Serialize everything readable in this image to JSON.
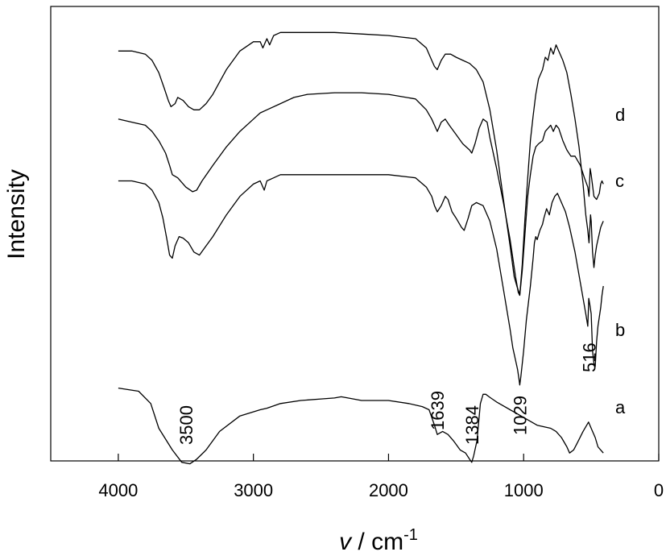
{
  "chart_data": {
    "type": "line",
    "xlabel": "v / cm-1",
    "xlabel_main": "v",
    "xlabel_sep": " / cm",
    "xlabel_sup": "-1",
    "ylabel": "Intensity",
    "xlim": [
      4500,
      0
    ],
    "x_reversed": true,
    "y_ticks_shown": false,
    "grid": false,
    "xticks": [
      "4000",
      "3000",
      "2000",
      "1000",
      "0"
    ],
    "xtick_values": [
      4000,
      3000,
      2000,
      1000,
      0
    ],
    "annotations": [
      {
        "text": "3500",
        "x": 3500
      },
      {
        "text": "1639",
        "x": 1639
      },
      {
        "text": "1384",
        "x": 1384
      },
      {
        "text": "1029",
        "x": 1029
      },
      {
        "text": "516",
        "x": 516
      }
    ],
    "series": [
      {
        "name": "a",
        "x": [
          4000,
          3850,
          3760,
          3700,
          3600,
          3530,
          3470,
          3420,
          3350,
          3250,
          3100,
          2950,
          2900,
          2800,
          2650,
          2500,
          2400,
          2350,
          2300,
          2200,
          2000,
          1850,
          1750,
          1700,
          1660,
          1639,
          1600,
          1560,
          1520,
          1470,
          1430,
          1400,
          1384,
          1370,
          1345,
          1320,
          1300,
          1280,
          1250,
          1200,
          1100,
          1000,
          900,
          850,
          800,
          760,
          720,
          680,
          660,
          630,
          600,
          560,
          520,
          500,
          470,
          450,
          430,
          410
        ],
        "y": [
          0.1,
          0.09,
          0.05,
          -0.03,
          -0.1,
          -0.14,
          -0.145,
          -0.13,
          -0.1,
          -0.04,
          0.01,
          0.03,
          0.035,
          0.05,
          0.06,
          0.065,
          0.068,
          0.072,
          0.068,
          0.06,
          0.06,
          0.05,
          0.04,
          0.03,
          -0.02,
          -0.05,
          -0.04,
          -0.05,
          -0.07,
          -0.1,
          -0.11,
          -0.13,
          -0.14,
          -0.12,
          -0.07,
          0.05,
          0.08,
          0.08,
          0.07,
          0.055,
          0.03,
          0.005,
          -0.02,
          -0.025,
          -0.03,
          -0.04,
          -0.06,
          -0.09,
          -0.11,
          -0.1,
          -0.075,
          -0.04,
          -0.01,
          -0.03,
          -0.06,
          -0.09,
          -0.1,
          -0.11
        ]
      },
      {
        "name": "b",
        "x": [
          4000,
          3900,
          3800,
          3750,
          3700,
          3670,
          3640,
          3620,
          3600,
          3580,
          3550,
          3520,
          3480,
          3440,
          3400,
          3300,
          3200,
          3100,
          3000,
          2950,
          2920,
          2900,
          2850,
          2800,
          2600,
          2400,
          2200,
          2000,
          1800,
          1720,
          1680,
          1660,
          1639,
          1610,
          1580,
          1560,
          1530,
          1500,
          1460,
          1440,
          1410,
          1384,
          1350,
          1300,
          1250,
          1200,
          1150,
          1100,
          1080,
          1060,
          1045,
          1035,
          1029,
          1020,
          1000,
          980,
          950,
          930,
          920,
          910,
          900,
          880,
          860,
          850,
          830,
          810,
          790,
          770,
          750,
          720,
          690,
          660,
          620,
          580,
          540,
          525,
          518,
          510,
          500,
          490,
          480,
          470,
          460,
          450,
          440,
          430,
          420,
          410
        ],
        "y": [
          0.77,
          0.77,
          0.76,
          0.74,
          0.7,
          0.65,
          0.58,
          0.53,
          0.52,
          0.56,
          0.59,
          0.585,
          0.57,
          0.54,
          0.53,
          0.59,
          0.66,
          0.72,
          0.76,
          0.77,
          0.74,
          0.77,
          0.78,
          0.79,
          0.79,
          0.79,
          0.79,
          0.79,
          0.78,
          0.75,
          0.72,
          0.69,
          0.67,
          0.69,
          0.72,
          0.71,
          0.67,
          0.65,
          0.62,
          0.61,
          0.65,
          0.69,
          0.7,
          0.69,
          0.64,
          0.55,
          0.42,
          0.29,
          0.23,
          0.19,
          0.16,
          0.13,
          0.11,
          0.14,
          0.22,
          0.32,
          0.43,
          0.52,
          0.57,
          0.59,
          0.58,
          0.61,
          0.63,
          0.65,
          0.68,
          0.66,
          0.7,
          0.72,
          0.73,
          0.7,
          0.67,
          0.62,
          0.54,
          0.44,
          0.34,
          0.3,
          0.39,
          0.37,
          0.34,
          0.22,
          0.18,
          0.17,
          0.25,
          0.3,
          0.33,
          0.36,
          0.4,
          0.43
        ]
      },
      {
        "name": "c",
        "x": [
          4000,
          3900,
          3800,
          3750,
          3700,
          3650,
          3620,
          3600,
          3560,
          3500,
          3450,
          3420,
          3380,
          3300,
          3200,
          3100,
          3000,
          2950,
          2900,
          2800,
          2700,
          2600,
          2400,
          2200,
          2000,
          1800,
          1720,
          1680,
          1660,
          1639,
          1610,
          1580,
          1550,
          1500,
          1450,
          1400,
          1384,
          1360,
          1330,
          1300,
          1270,
          1250,
          1200,
          1150,
          1100,
          1060,
          1040,
          1029,
          1010,
          990,
          970,
          950,
          930,
          910,
          890,
          860,
          840,
          820,
          800,
          780,
          760,
          740,
          710,
          680,
          650,
          620,
          580,
          550,
          525,
          516,
          508,
          500,
          480,
          460,
          440,
          430,
          420,
          410
        ],
        "y": [
          0.97,
          0.96,
          0.95,
          0.93,
          0.9,
          0.86,
          0.82,
          0.79,
          0.78,
          0.75,
          0.735,
          0.74,
          0.77,
          0.82,
          0.88,
          0.93,
          0.97,
          0.99,
          1.0,
          1.02,
          1.04,
          1.05,
          1.055,
          1.055,
          1.05,
          1.035,
          1.0,
          0.97,
          0.95,
          0.93,
          0.96,
          0.97,
          0.95,
          0.92,
          0.89,
          0.87,
          0.86,
          0.89,
          0.94,
          0.97,
          0.96,
          0.91,
          0.81,
          0.7,
          0.58,
          0.46,
          0.41,
          0.4,
          0.48,
          0.6,
          0.72,
          0.79,
          0.85,
          0.88,
          0.89,
          0.9,
          0.93,
          0.94,
          0.95,
          0.93,
          0.95,
          0.94,
          0.9,
          0.87,
          0.85,
          0.85,
          0.82,
          0.78,
          0.75,
          0.72,
          0.81,
          0.79,
          0.72,
          0.71,
          0.73,
          0.76,
          0.77,
          0.76
        ]
      },
      {
        "name": "d",
        "x": [
          4000,
          3900,
          3800,
          3750,
          3700,
          3660,
          3630,
          3610,
          3580,
          3560,
          3520,
          3480,
          3440,
          3400,
          3350,
          3300,
          3250,
          3200,
          3100,
          3000,
          2950,
          2930,
          2900,
          2880,
          2850,
          2800,
          2600,
          2400,
          2200,
          2000,
          1900,
          1800,
          1720,
          1680,
          1660,
          1639,
          1610,
          1580,
          1540,
          1500,
          1450,
          1400,
          1350,
          1300,
          1250,
          1200,
          1150,
          1100,
          1070,
          1050,
          1035,
          1029,
          1010,
          990,
          970,
          950,
          930,
          910,
          890,
          860,
          840,
          820,
          800,
          780,
          760,
          740,
          710,
          680,
          650,
          620,
          590,
          560,
          540,
          525,
          516,
          505,
          500,
          490,
          480,
          470,
          460,
          450,
          440,
          430,
          420,
          410
        ],
        "y": [
          1.19,
          1.19,
          1.18,
          1.16,
          1.12,
          1.07,
          1.03,
          1.01,
          1.02,
          1.04,
          1.03,
          1.01,
          1.0,
          1.0,
          1.02,
          1.05,
          1.09,
          1.13,
          1.19,
          1.22,
          1.22,
          1.2,
          1.23,
          1.21,
          1.24,
          1.25,
          1.25,
          1.25,
          1.245,
          1.24,
          1.235,
          1.23,
          1.2,
          1.16,
          1.14,
          1.13,
          1.16,
          1.18,
          1.18,
          1.17,
          1.16,
          1.15,
          1.13,
          1.09,
          1.0,
          0.87,
          0.71,
          0.56,
          0.46,
          0.43,
          0.41,
          0.4,
          0.5,
          0.65,
          0.78,
          0.9,
          0.98,
          1.05,
          1.1,
          1.13,
          1.17,
          1.16,
          1.2,
          1.18,
          1.21,
          1.19,
          1.16,
          1.12,
          1.05,
          0.97,
          0.88,
          0.76,
          0.66,
          0.61,
          0.57,
          0.66,
          0.64,
          0.54,
          0.49,
          0.53,
          0.56,
          0.58,
          0.6,
          0.62,
          0.63,
          0.64
        ]
      }
    ]
  }
}
